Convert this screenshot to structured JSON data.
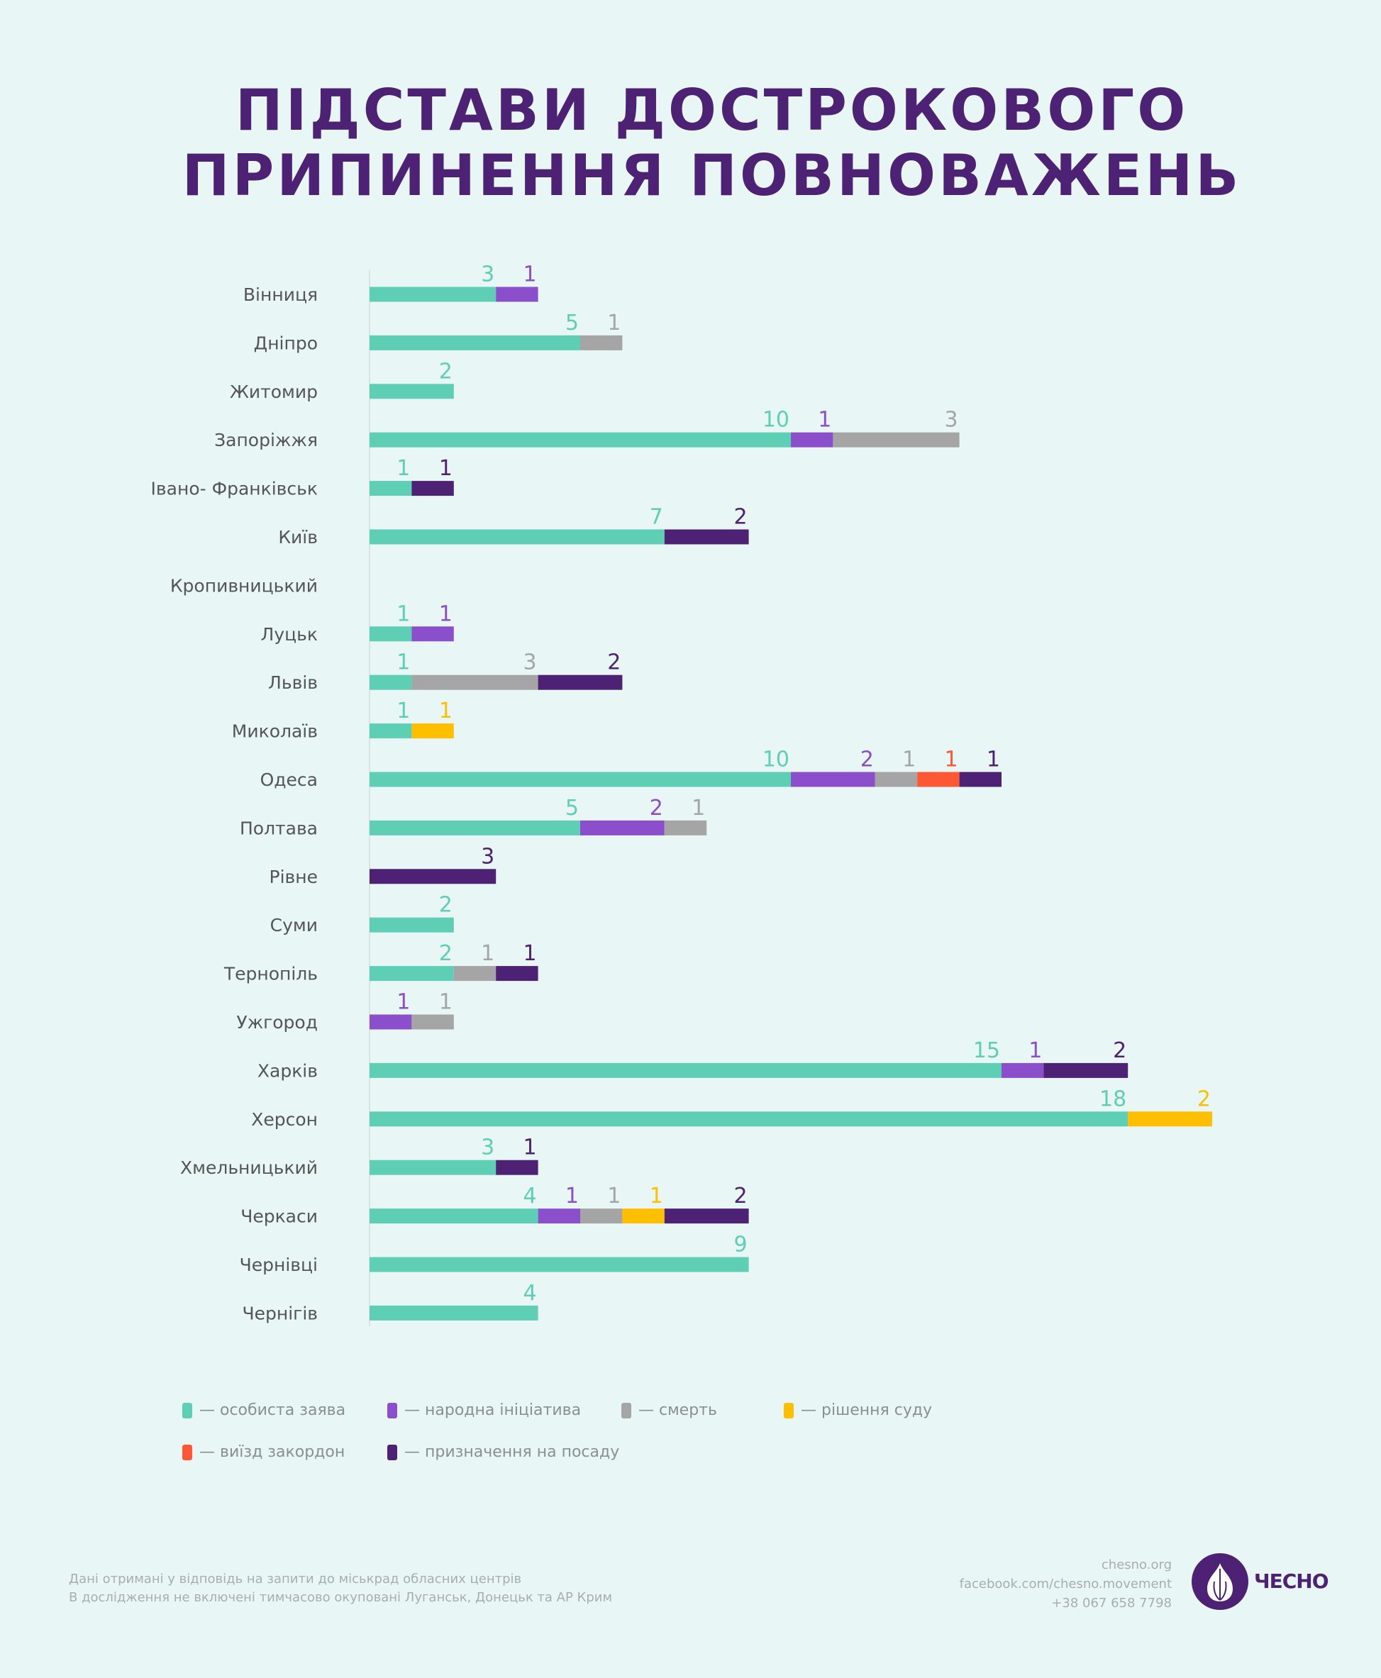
{
  "title_lines": [
    "ПІДСТАВИ ДОСТРОКОВОГО",
    "ПРИПИНЕННЯ ПОВНОВАЖЕНЬ"
  ],
  "chart_data": {
    "type": "bar",
    "orientation": "horizontal",
    "stacked": true,
    "title": "ПІДСТАВИ ДОСТРОКОВОГО ПРИПИНЕННЯ ПОВНОВАЖЕНЬ",
    "categories": [
      "Вінниця",
      "Дніпро",
      "Житомир",
      "Запоріжжя",
      "Івано- Франківськ",
      "Київ",
      "Кропивницький",
      "Луцьк",
      "Львів",
      "Миколаїв",
      "Одеса",
      "Полтава",
      "Рівне",
      "Суми",
      "Тернопіль",
      "Ужгород",
      "Харків",
      "Херсон",
      "Хмельницький",
      "Черкаси",
      "Чернівці",
      "Чернігів"
    ],
    "series": [
      {
        "name": "— особиста заява",
        "color": "#5ecfb4",
        "values": [
          3,
          5,
          2,
          10,
          1,
          7,
          0,
          1,
          1,
          1,
          10,
          5,
          0,
          2,
          2,
          0,
          15,
          18,
          3,
          4,
          9,
          4
        ]
      },
      {
        "name": "— народна ініціатива",
        "color": "#8c4fcb",
        "values": [
          1,
          0,
          0,
          1,
          0,
          0,
          0,
          1,
          0,
          0,
          2,
          2,
          0,
          0,
          0,
          1,
          1,
          0,
          0,
          1,
          0,
          0
        ]
      },
      {
        "name": "— смерть",
        "color": "#a5a5a5",
        "values": [
          0,
          1,
          0,
          3,
          0,
          0,
          0,
          0,
          3,
          0,
          1,
          1,
          0,
          0,
          1,
          1,
          0,
          0,
          0,
          1,
          0,
          0
        ]
      },
      {
        "name": "— рішення суду",
        "color": "#fdbf00",
        "values": [
          0,
          0,
          0,
          0,
          0,
          0,
          0,
          0,
          0,
          1,
          0,
          0,
          0,
          0,
          0,
          0,
          0,
          2,
          0,
          1,
          0,
          0
        ]
      },
      {
        "name": "— виїзд закордон",
        "color": "#ff5733",
        "values": [
          0,
          0,
          0,
          0,
          0,
          0,
          0,
          0,
          0,
          0,
          1,
          0,
          0,
          0,
          0,
          0,
          0,
          0,
          0,
          0,
          0,
          0
        ]
      },
      {
        "name": "— призначення на посаду",
        "color": "#4d2275",
        "values": [
          0,
          0,
          0,
          0,
          1,
          2,
          0,
          0,
          2,
          0,
          1,
          0,
          3,
          0,
          1,
          0,
          2,
          0,
          1,
          2,
          0,
          0
        ]
      }
    ],
    "xlim": [
      0,
      20
    ],
    "grid": false,
    "legend_position": "bottom-left",
    "data_labels": true
  },
  "footer": {
    "notes": [
      "Дані отримані у відповідь на запити до міськрад обласних центрів",
      "В дослідження не включені тимчасово окуповані Луганськ, Донецьк та АР Крим"
    ],
    "contacts": [
      "chesno.org",
      "facebook.com/chesno.movement",
      "+38 067 658 7798"
    ],
    "logo_text": "ЧЕСНО"
  }
}
